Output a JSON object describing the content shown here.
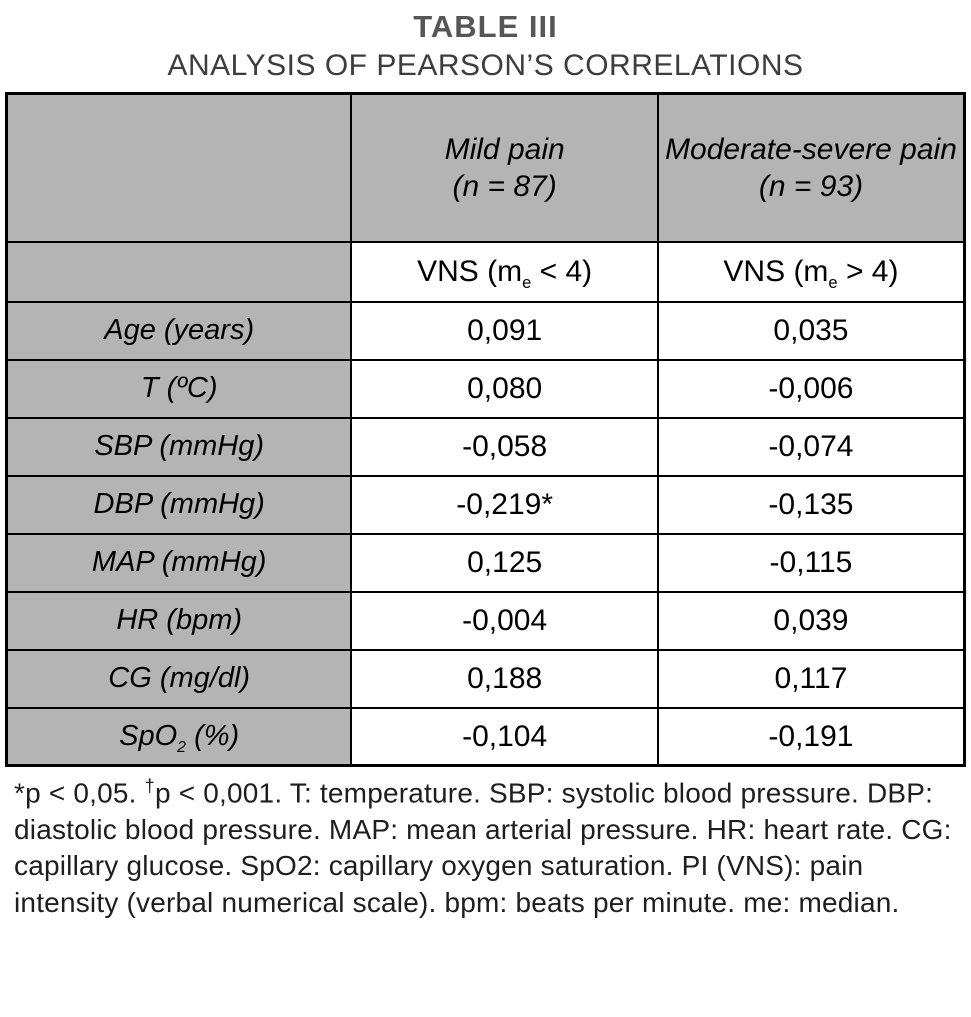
{
  "title": {
    "line1": "TABLE III",
    "line2": "ANALYSIS OF PEARSON’S CORRELATIONS"
  },
  "table": {
    "header": {
      "mild": {
        "name": "Mild pain",
        "n": "(n = 87)"
      },
      "modsev": {
        "name": "Moderate-severe pain",
        "n": "(n = 93)"
      }
    },
    "subheader": {
      "mild": {
        "prefix": "VNS (m",
        "sub": "e",
        "suffix": " < 4)"
      },
      "modsev": {
        "prefix": "VNS (m",
        "sub": "e",
        "suffix": " > 4)"
      }
    },
    "rows": [
      {
        "label": "Age (years)",
        "mild": "0,091",
        "modsev": "0,035"
      },
      {
        "label": "T (ºC)",
        "mild": "0,080",
        "modsev": "-0,006"
      },
      {
        "label": "SBP (mmHg)",
        "mild": "-0,058",
        "modsev": "-0,074"
      },
      {
        "label": "DBP (mmHg)",
        "mild": "-0,219*",
        "modsev": "-0,135"
      },
      {
        "label": "MAP (mmHg)",
        "mild": "0,125",
        "modsev": "-0,115"
      },
      {
        "label": "HR (bpm)",
        "mild": "-0,004",
        "modsev": "0,039"
      },
      {
        "label": "CG (mg/dl)",
        "mild": "0,188",
        "modsev": "0,117"
      },
      {
        "label_prefix": "SpO",
        "label_sub": "2",
        "label_suffix": " (%)",
        "mild": "-0,104",
        "modsev": "-0,191"
      }
    ]
  },
  "footnote": {
    "part1": "*p < 0,05. ",
    "dagger": "†",
    "part2": "p < 0,001. T: temperature. SBP: systolic blood pressure. DBP: diastolic blood pressure. MAP: mean arterial pressure. HR: heart rate. CG: capillary glucose. SpO2: capillary oxygen saturation. PI (VNS): pain intensity (verbal numerical scale). bpm: beats per minute. me: median."
  },
  "colors": {
    "header_gray": "#b4b4b4",
    "border": "#000000"
  }
}
